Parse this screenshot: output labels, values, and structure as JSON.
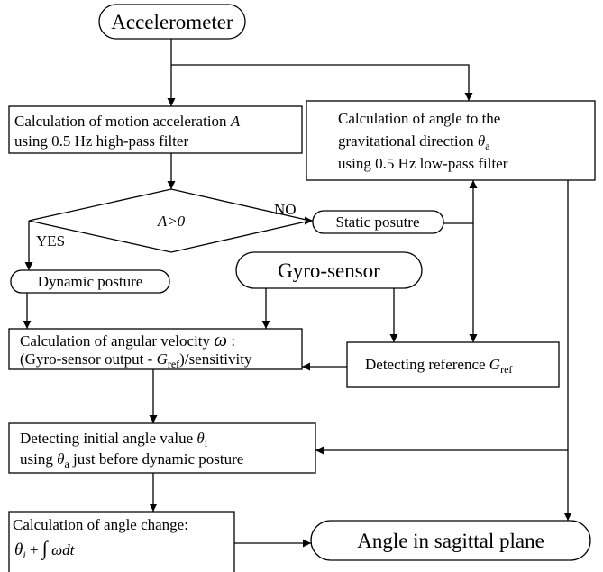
{
  "nodes": [
    {
      "lines": [
        [
          "Accelerometer"
        ]
      ]
    },
    {
      "lines": [
        [
          "Calculation of motion acceleration ",
          "A"
        ],
        [
          "using 0.5 Hz high-pass filter"
        ]
      ]
    },
    {
      "lines": [
        [
          "Calculation of angle to the"
        ],
        [
          "gravitational direction ",
          "θ",
          "a"
        ],
        [
          "using 0.5 Hz low-pass filter"
        ]
      ]
    },
    {
      "lines": [
        [
          "A>0"
        ]
      ]
    },
    {
      "lines": [
        [
          "Static posutre"
        ]
      ]
    },
    {
      "lines": [
        [
          "Dynamic posture"
        ]
      ]
    },
    {
      "lines": [
        [
          "Gyro-sensor"
        ]
      ]
    },
    {
      "lines": [
        [
          "Calculation of angular velocity ",
          "ω",
          " :"
        ],
        [
          "(Gyro-sensor output - ",
          "G",
          "ref",
          ")/sensitivity"
        ]
      ]
    },
    {
      "lines": [
        [
          "Detecting reference ",
          "G",
          "ref"
        ]
      ]
    },
    {
      "lines": [
        [
          "Detecting initial angle value ",
          "θ",
          "i"
        ],
        [
          "using ",
          "θ",
          "a",
          " just before dynamic posture"
        ]
      ]
    },
    {
      "lines": [
        [
          "Calculation of angle change:"
        ],
        [
          "θ",
          "i",
          " + ",
          "∫",
          "  ",
          "ωdt"
        ]
      ]
    },
    {
      "lines": [
        [
          "Angle in sagittal plane"
        ]
      ]
    }
  ],
  "edge_labels": [
    "NO",
    "YES"
  ]
}
